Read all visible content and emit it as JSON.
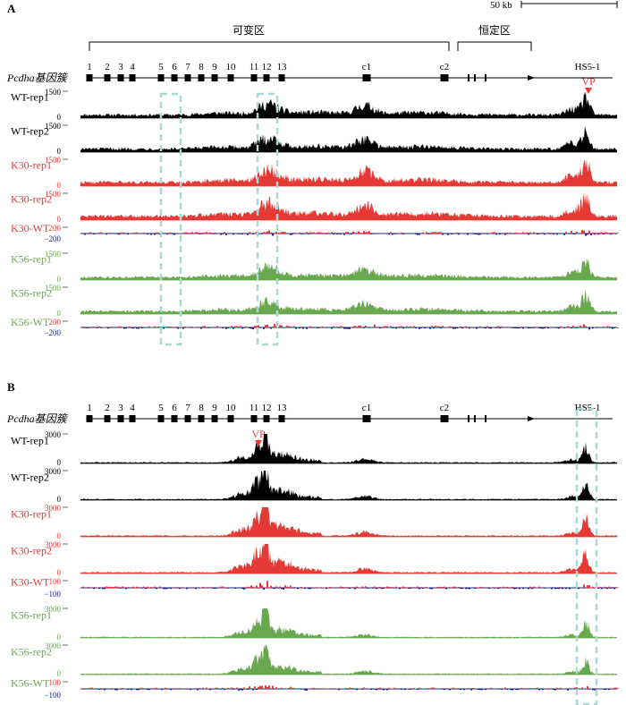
{
  "scale_bar": "50 kb",
  "colors": {
    "black": "#000000",
    "red": "#e53935",
    "green": "#6aa84f",
    "blue": "#1a237e",
    "box": "#a8dad3"
  },
  "panels": [
    {
      "id": "A",
      "panel_label": "A",
      "region_labels": [
        "可变区",
        "恒定区"
      ],
      "gene_cluster_label": "Pcdha基因簇",
      "exon_labels": [
        "1",
        "2",
        "3",
        "4",
        "5",
        "6",
        "7",
        "8",
        "9",
        "10",
        "11",
        "12",
        "13",
        "c1",
        "c2",
        "HS5-1"
      ],
      "vp_label": "VP",
      "track_labels": [
        "WT-rep1",
        "WT-rep2",
        "K30-rep1",
        "K30-rep2",
        "K30-WT",
        "K56-rep1",
        "K56-rep2",
        "K56-WT"
      ],
      "track_scales": [
        {
          "max": "1500",
          "min": "0"
        },
        {
          "max": "1500",
          "min": "0"
        },
        {
          "max": "1500",
          "min": "0"
        },
        {
          "max": "1500",
          "min": "0"
        },
        {
          "max": "200",
          "min": "−200"
        },
        {
          "max": "1500",
          "min": "0"
        },
        {
          "max": "1500",
          "min": "0"
        },
        {
          "max": "200",
          "min": "−200"
        }
      ]
    },
    {
      "id": "B",
      "panel_label": "B",
      "gene_cluster_label": "Pcdha基因簇",
      "exon_labels": [
        "1",
        "2",
        "3",
        "4",
        "5",
        "6",
        "7",
        "8",
        "9",
        "10",
        "11",
        "12",
        "13",
        "c1",
        "c2",
        "HS5-1"
      ],
      "vp_label": "VP",
      "track_labels": [
        "WT-rep1",
        "WT-rep2",
        "K30-rep1",
        "K30-rep2",
        "K30-WT",
        "K56-rep1",
        "K56-rep2",
        "K56-WT"
      ],
      "track_scales": [
        {
          "max": "3000",
          "min": "0"
        },
        {
          "max": "3000",
          "min": "0"
        },
        {
          "max": "3000",
          "min": "0"
        },
        {
          "max": "3000",
          "min": "0"
        },
        {
          "max": "100",
          "min": "−100"
        },
        {
          "max": "3000",
          "min": "0"
        },
        {
          "max": "3000",
          "min": "0"
        },
        {
          "max": "100",
          "min": "−100"
        }
      ]
    }
  ],
  "chart_data": [
    {
      "type": "area",
      "panel": "A",
      "viewpoint": "HS5-1",
      "series": [
        {
          "name": "WT-rep1",
          "ylim": [
            0,
            1500
          ]
        },
        {
          "name": "WT-rep2",
          "ylim": [
            0,
            1500
          ]
        },
        {
          "name": "K30-rep1",
          "ylim": [
            0,
            1500
          ]
        },
        {
          "name": "K30-rep2",
          "ylim": [
            0,
            1500
          ]
        },
        {
          "name": "K30-WT",
          "ylim": [
            -200,
            200
          ]
        },
        {
          "name": "K56-rep1",
          "ylim": [
            0,
            1500
          ]
        },
        {
          "name": "K56-rep2",
          "ylim": [
            0,
            1500
          ]
        },
        {
          "name": "K56-WT",
          "ylim": [
            -200,
            200
          ]
        }
      ]
    },
    {
      "type": "area",
      "panel": "B",
      "viewpoint": "12",
      "series": [
        {
          "name": "WT-rep1",
          "ylim": [
            0,
            3000
          ]
        },
        {
          "name": "WT-rep2",
          "ylim": [
            0,
            3000
          ]
        },
        {
          "name": "K30-rep1",
          "ylim": [
            0,
            3000
          ]
        },
        {
          "name": "K30-rep2",
          "ylim": [
            0,
            3000
          ]
        },
        {
          "name": "K30-WT",
          "ylim": [
            -100,
            100
          ]
        },
        {
          "name": "K56-rep1",
          "ylim": [
            0,
            3000
          ]
        },
        {
          "name": "K56-rep2",
          "ylim": [
            0,
            3000
          ]
        },
        {
          "name": "K56-WT",
          "ylim": [
            -100,
            100
          ]
        }
      ]
    }
  ]
}
